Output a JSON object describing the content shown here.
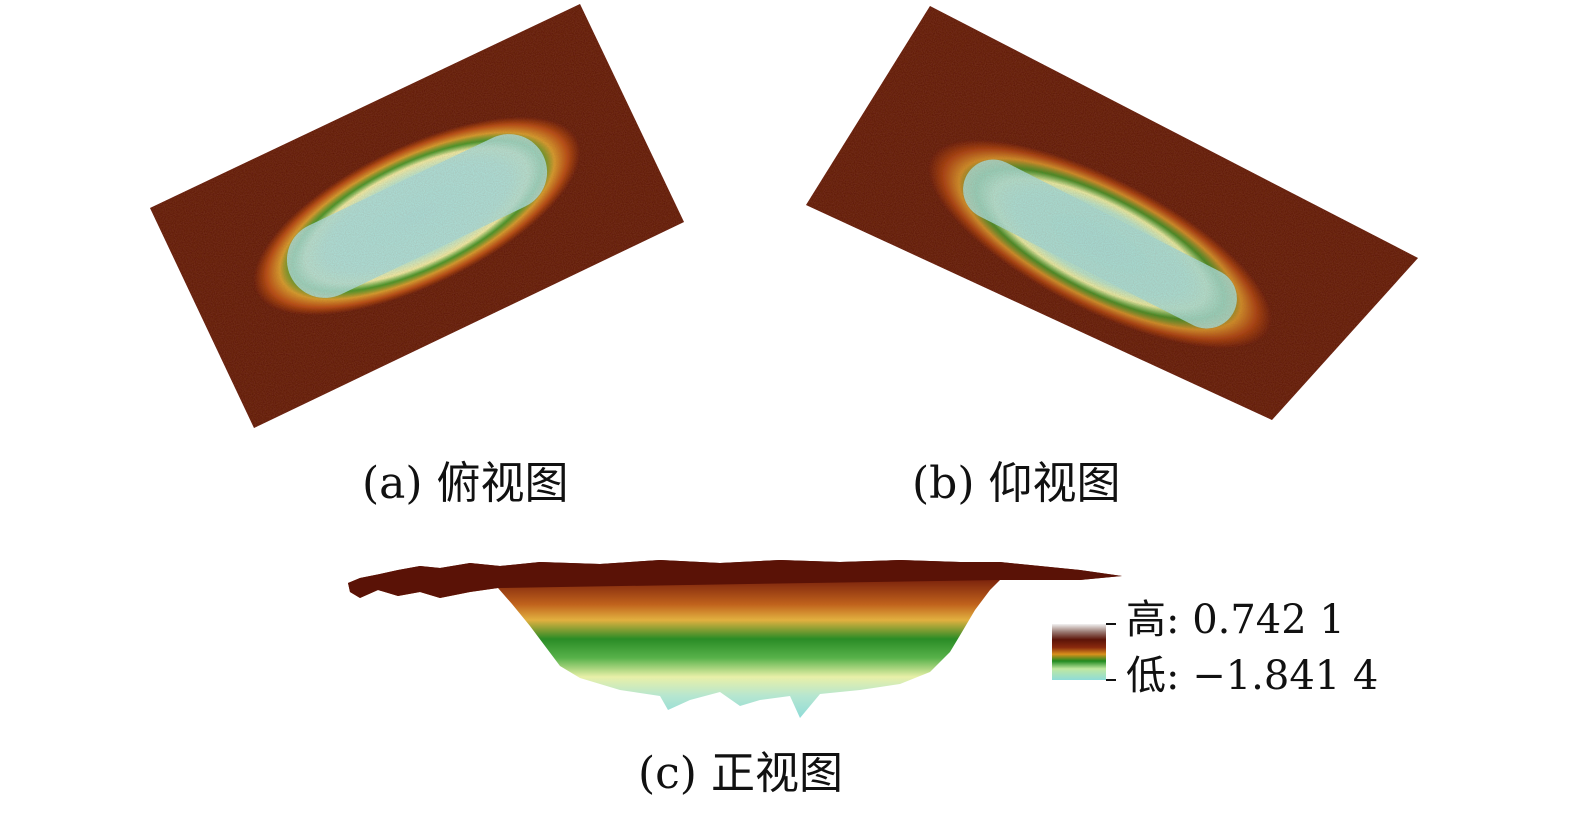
{
  "captions": {
    "a": "(a) 俯视图",
    "b": "(b) 仰视图",
    "c": "(c) 正视图"
  },
  "legend": {
    "high_label": "高: 0.742 1",
    "low_label": "低: −1.841 4",
    "colors": {
      "top": "#f2f2f2",
      "dark_brown": "#5c1408",
      "red_brown": "#8a2a0e",
      "orange": "#d8901c",
      "yellow": "#f0e06a",
      "green": "#1f8a1f",
      "light_green": "#bfe8a0",
      "cyan": "#8fdcd8"
    }
  },
  "surface": {
    "background_color": "#5a1206"
  }
}
